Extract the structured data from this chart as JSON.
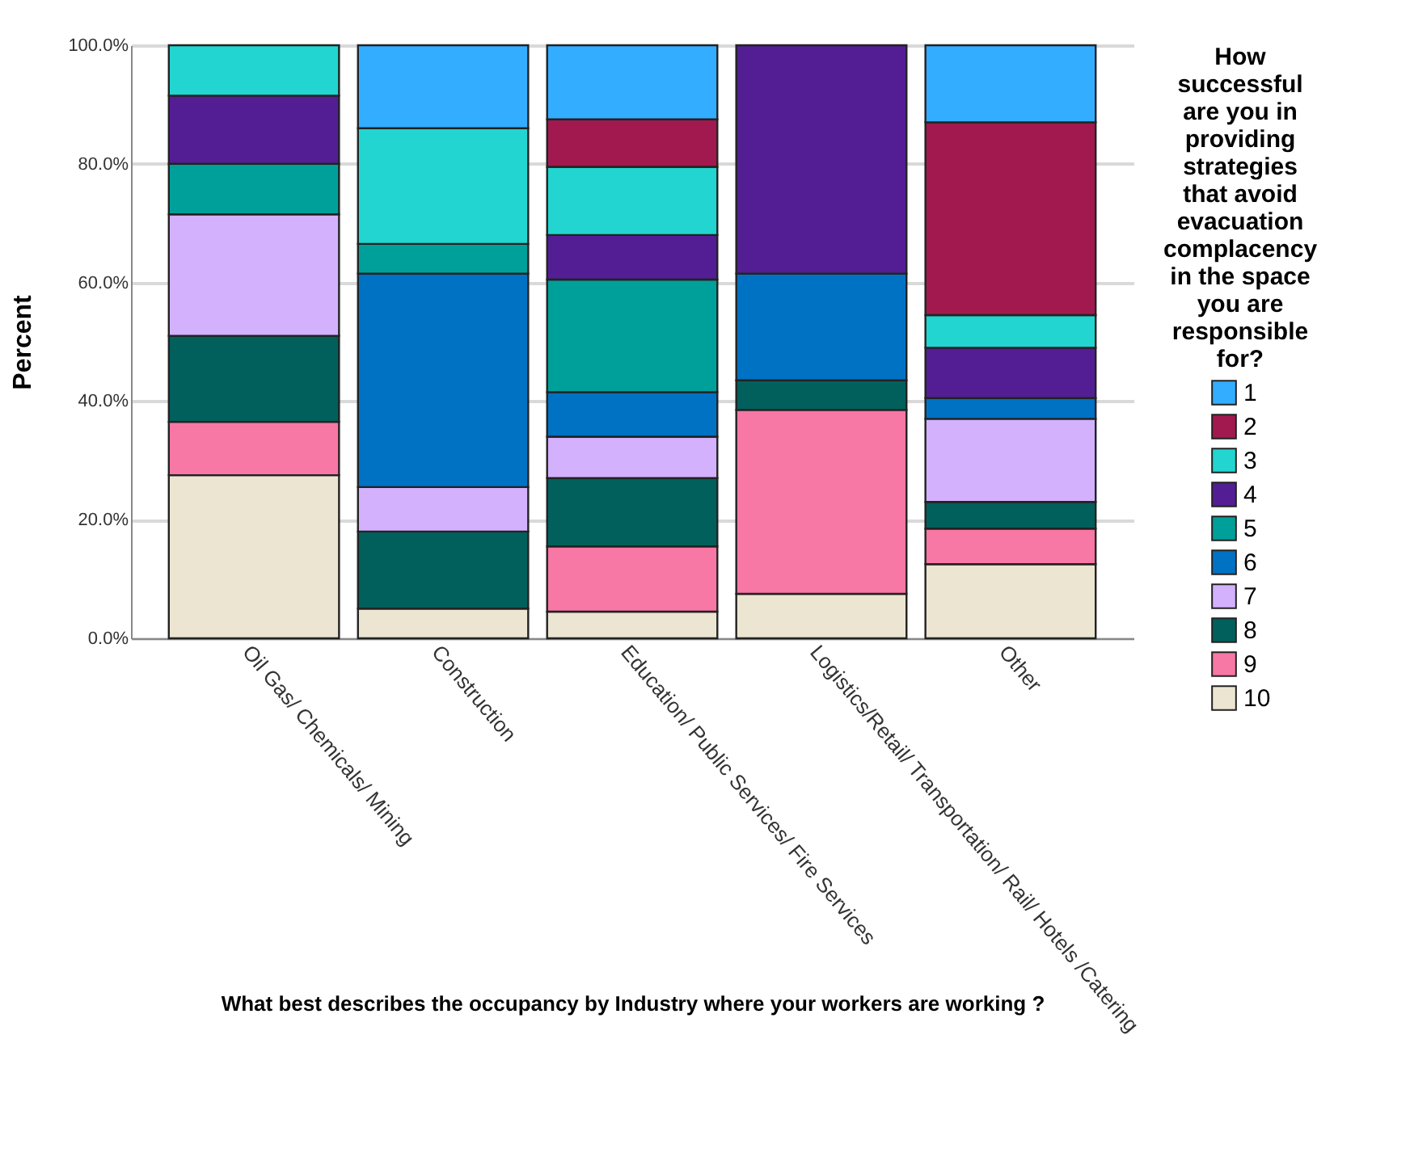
{
  "chart_data": {
    "type": "bar",
    "stacked": true,
    "xlabel": "What best describes the occupancy by Industry where your workers are working ?",
    "ylabel": "Percent",
    "legend_title": "How successful are you in providing strategies that avoid evacuation complacency in the space you are responsible for?",
    "legend": "right",
    "grid": "y",
    "categories": [
      "Oil Gas/ Chemicals/ Mining",
      "Construction",
      "Education/ Public Services/ Fire Services",
      "Logistics/Retail/ Transportation/ Rail/ Hotels /Catering",
      "Other"
    ],
    "ylim": [
      0,
      100
    ],
    "yticks": [
      {
        "value": 0,
        "label": "0.0%"
      },
      {
        "value": 20,
        "label": "20.0%"
      },
      {
        "value": 40,
        "label": "40.0%"
      },
      {
        "value": 60,
        "label": "60.0%"
      },
      {
        "value": 80,
        "label": "80.0%"
      },
      {
        "value": 100,
        "label": "100.0%"
      }
    ],
    "series": [
      {
        "name": "10",
        "color": "#ebe5d1",
        "values": [
          27.5,
          5,
          4.5,
          7.5,
          12.5
        ]
      },
      {
        "name": "9",
        "color": "#f777a5",
        "values": [
          9,
          null,
          11,
          31,
          6
        ]
      },
      {
        "name": "8",
        "color": "#01605c",
        "values": [
          14.5,
          13,
          11.5,
          5,
          4.5
        ]
      },
      {
        "name": "7",
        "color": "#d3b1fd",
        "values": [
          20.5,
          7.5,
          7,
          null,
          14
        ]
      },
      {
        "name": "6",
        "color": "#0072c4",
        "values": [
          null,
          36,
          7.5,
          18,
          3.5
        ]
      },
      {
        "name": "5",
        "color": "#00a09a",
        "values": [
          8.5,
          5,
          19,
          null,
          null
        ]
      },
      {
        "name": "4",
        "color": "#531e93",
        "values": [
          11.5,
          null,
          7.5,
          38.5,
          8.5
        ]
      },
      {
        "name": "3",
        "color": "#22d5d0",
        "values": [
          8.5,
          19.5,
          11.5,
          null,
          5.5
        ]
      },
      {
        "name": "2",
        "color": "#a2194f",
        "values": [
          null,
          null,
          8,
          null,
          32.5
        ]
      },
      {
        "name": "1",
        "color": "#33adff",
        "values": [
          null,
          14,
          12.5,
          null,
          13
        ]
      }
    ]
  }
}
